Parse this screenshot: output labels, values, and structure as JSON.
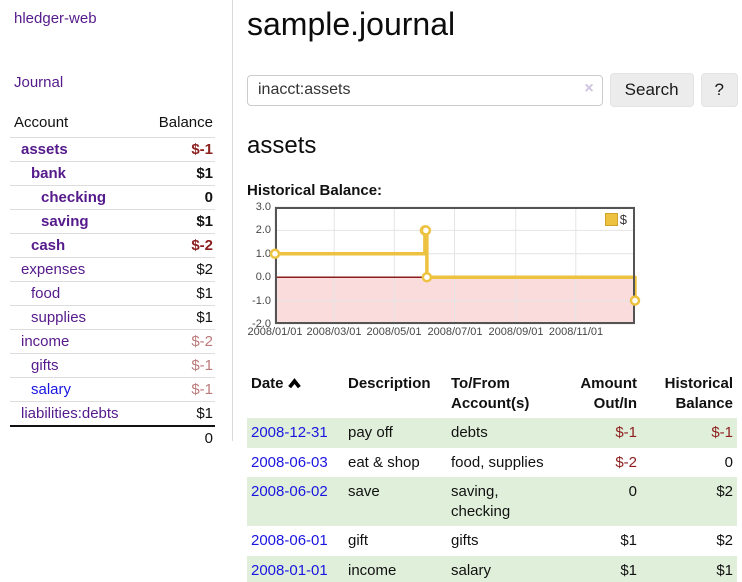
{
  "colors": {
    "visited_purple": "#551a8b",
    "link_blue": "#1a16e0",
    "negative_strong": "#8d1f1f",
    "negative_soft": "#bd7a7a",
    "row_green": "#e0efda",
    "chart_gold": "#edc240"
  },
  "sidebar": {
    "app_title": "hledger-web",
    "nav_journal": "Journal",
    "accounts": {
      "headers": {
        "account": "Account",
        "balance": "Balance"
      },
      "rows": [
        {
          "name": "assets",
          "balance": "$-1"
        },
        {
          "name": "bank",
          "balance": "$1"
        },
        {
          "name": "checking",
          "balance": "0"
        },
        {
          "name": "saving",
          "balance": "$1"
        },
        {
          "name": "cash",
          "balance": "$-2"
        },
        {
          "name": "expenses",
          "balance": "$2"
        },
        {
          "name": "food",
          "balance": "$1"
        },
        {
          "name": "supplies",
          "balance": "$1"
        },
        {
          "name": "income",
          "balance": "$-2"
        },
        {
          "name": "gifts",
          "balance": "$-1"
        },
        {
          "name": "salary",
          "balance": "$-1"
        },
        {
          "name": "liabilities:debts",
          "balance": "$1"
        }
      ],
      "total": "0"
    }
  },
  "main": {
    "title": "sample.journal",
    "search": {
      "value": "inacct:assets",
      "clear_icon": "×",
      "button_label": "Search",
      "help_label": "?"
    },
    "account_heading": "assets",
    "chart_label": "Historical Balance:"
  },
  "chart_data": {
    "type": "line",
    "step": true,
    "title": "Historical Balance:",
    "series": [
      {
        "name": "$",
        "points": [
          [
            "2008-01-01",
            1
          ],
          [
            "2008-06-01",
            2
          ],
          [
            "2008-06-02",
            2
          ],
          [
            "2008-06-03",
            0
          ],
          [
            "2008-12-31",
            -1
          ]
        ]
      }
    ],
    "x_start": "2008-01-01",
    "x_end": "2008-12-31",
    "x_ticks": [
      [
        "2008-01-01",
        "2008/01/01"
      ],
      [
        "2008-03-01",
        "2008/03/01"
      ],
      [
        "2008-05-01",
        "2008/05/01"
      ],
      [
        "2008-07-01",
        "2008/07/01"
      ],
      [
        "2008-09-01",
        "2008/09/01"
      ],
      [
        "2008-11-01",
        "2008/11/01"
      ]
    ],
    "y_ticks": [
      "3.0",
      "2.0",
      "1.0",
      "0.0",
      "-1.0",
      "-2.0"
    ],
    "ylim": [
      -2,
      3
    ],
    "grid": true,
    "legend": {
      "label": "$",
      "position": "top-right"
    },
    "colors": {
      "line": "#edc240",
      "negative_fill": "#fbdcdc",
      "zero_line": "#8b1c1c",
      "grid": "#e4e4e4",
      "border": "#545454"
    }
  },
  "register": {
    "headers": {
      "date": "Date",
      "description": "Description",
      "accounts": "To/From Account(s)",
      "amount": "Amount Out/In",
      "balance": "Historical Balance"
    },
    "rows": [
      {
        "date": "2008-12-31",
        "description": "pay off",
        "accounts": "debts",
        "amount": "$-1",
        "balance": "$-1"
      },
      {
        "date": "2008-06-03",
        "description": "eat & shop",
        "accounts": "food, supplies",
        "amount": "$-2",
        "balance": "0"
      },
      {
        "date": "2008-06-02",
        "description": "save",
        "accounts": "saving, checking",
        "amount": "0",
        "balance": "$2"
      },
      {
        "date": "2008-06-01",
        "description": "gift",
        "accounts": "gifts",
        "amount": "$1",
        "balance": "$2"
      },
      {
        "date": "2008-01-01",
        "description": "income",
        "accounts": "salary",
        "amount": "$1",
        "balance": "$1"
      }
    ]
  }
}
